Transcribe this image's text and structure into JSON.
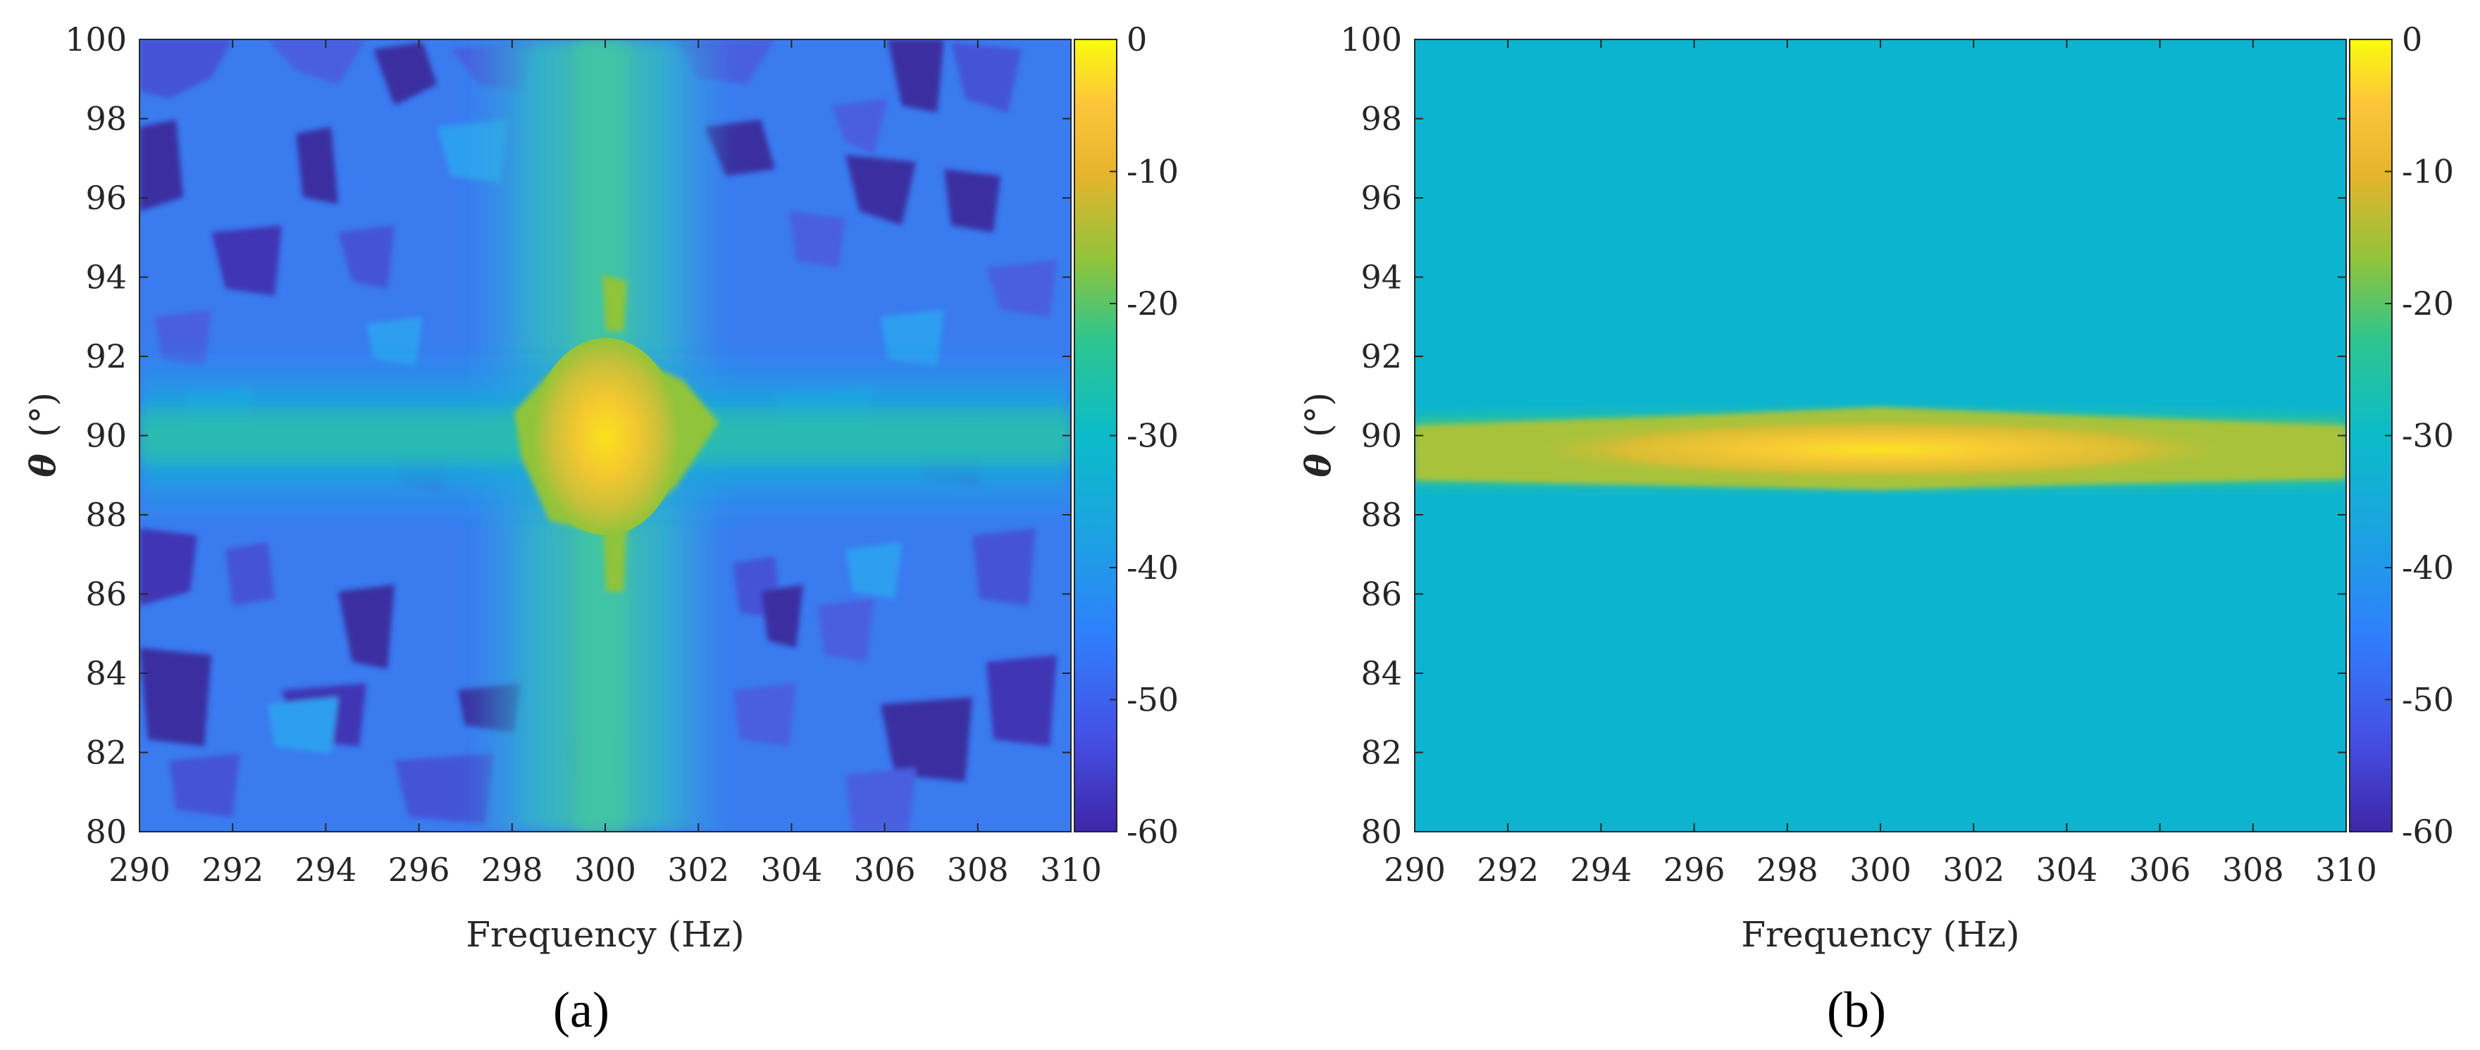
{
  "chart_data": [
    {
      "type": "heatmap",
      "panel_label": "(a)",
      "xlabel": "Frequency (Hz)",
      "ylabel_symbol": "θ",
      "ylabel_unit": "(°)",
      "x_ticks": [
        "290",
        "292",
        "294",
        "296",
        "298",
        "300",
        "302",
        "304",
        "306",
        "308",
        "310"
      ],
      "y_ticks": [
        "80",
        "82",
        "84",
        "86",
        "88",
        "90",
        "92",
        "94",
        "96",
        "98",
        "100"
      ],
      "xlim": [
        290,
        310
      ],
      "ylim": [
        80,
        100
      ],
      "colorbar": {
        "ticks": [
          "0",
          "-10",
          "-20",
          "-30",
          "-40",
          "-50",
          "-60"
        ],
        "range": [
          -60,
          0
        ],
        "colormap": "parula"
      },
      "description": "Noisy background (about -45 dB) with a cross-shaped ridge at 300 Hz and 90°, peak near -5 dB",
      "peak": {
        "frequency_hz": 300,
        "theta_deg": 90,
        "value_db": -5
      },
      "background_db": -45
    },
    {
      "type": "heatmap",
      "panel_label": "(b)",
      "xlabel": "Frequency (Hz)",
      "ylabel_symbol": "θ",
      "ylabel_unit": "(°)",
      "x_ticks": [
        "290",
        "292",
        "294",
        "296",
        "298",
        "300",
        "302",
        "304",
        "306",
        "308",
        "310"
      ],
      "y_ticks": [
        "80",
        "82",
        "84",
        "86",
        "88",
        "90",
        "92",
        "94",
        "96",
        "98",
        "100"
      ],
      "xlim": [
        290,
        310
      ],
      "ylim": [
        80,
        100
      ],
      "colorbar": {
        "ticks": [
          "0",
          "-10",
          "-20",
          "-30",
          "-40",
          "-50",
          "-60"
        ],
        "range": [
          -60,
          0
        ],
        "colormap": "parula"
      },
      "description": "Uniform background (about -36 dB) with a narrow horizontal band at 90° across all frequencies, peak near -3 dB at 300 Hz",
      "peak": {
        "frequency_hz": 300,
        "theta_deg": 90,
        "value_db": -3
      },
      "background_db": -36
    }
  ]
}
